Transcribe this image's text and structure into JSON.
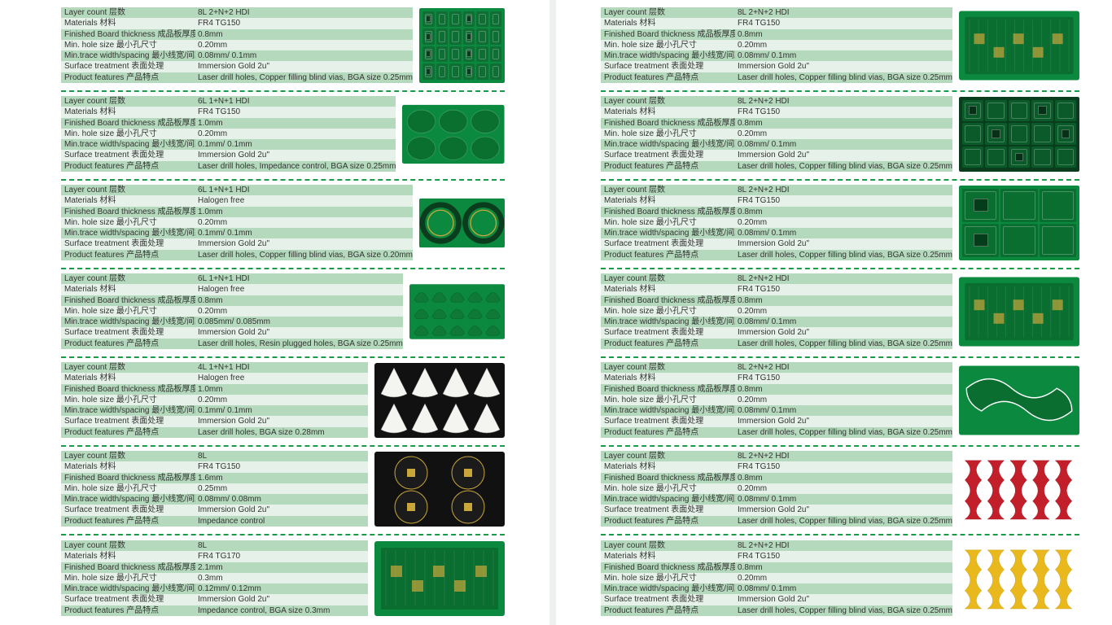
{
  "labels": [
    "Layer count 层数",
    "Materials 材料",
    "Finished Board thickness 成品板厚度",
    "Min. hole size 最小孔尺寸",
    "Min.trace width/spacing 最小线宽/间距",
    "Surface treatment 表面处理",
    "Product features 产品特点"
  ],
  "colors": {
    "row_odd": "#b4d9bc",
    "row_even": "#e6f2e9",
    "divider": "#1a9b4a",
    "pcb_green": "#0b8a3f",
    "pcb_dark": "#0a3d1e",
    "pcb_black": "#111111",
    "pcb_red": "#c21f2b",
    "pcb_yellow": "#e8b81c",
    "pcb_white": "#f4f4f0",
    "gold": "#c9a63a"
  },
  "left": [
    {
      "values": [
        "8L 2+N+2 HDI",
        "FR4 TG150",
        "0.8mm",
        "0.20mm",
        "0.08mm/ 0.1mm",
        "Immersion Gold 2u\"",
        "Laser drill holes, Copper filling blind vias, BGA size 0.25mm"
      ],
      "thumb": {
        "bg": "#0b8a3f",
        "grid": [
          4,
          6
        ],
        "cell": "#0f6e34",
        "shape": "grid"
      }
    },
    {
      "values": [
        "6L 1+N+1 HDI",
        "FR4 TG150",
        "1.0mm",
        "0.20mm",
        "0.1mm/ 0.1mm",
        "Immersion Gold 2u\"",
        "Laser drill holes,   Impedance control, BGA size 0.25mm"
      ],
      "thumb": {
        "bg": "#0b8a3f",
        "grid": [
          2,
          3
        ],
        "cell": "#0a7030",
        "shape": "blob"
      }
    },
    {
      "values": [
        "6L 1+N+1 HDI",
        "Halogen free",
        "1.0mm",
        "0.20mm",
        "0.1mm/ 0.1mm",
        "Immersion Gold 2u\"",
        "Laser drill holes, Copper filling blind vias, BGA size 0.20mm"
      ],
      "thumb": {
        "bg": "#0b8a3f",
        "grid": [
          1,
          2
        ],
        "cell": "#0a6e2f",
        "shape": "ring"
      }
    },
    {
      "values": [
        "6L 1+N+1 HDI",
        "Halogen free",
        "0.8mm",
        "0.20mm",
        "0.085mm/ 0.085mm",
        "Immersion Gold 2u\"",
        "Laser drill holes,   Resin plugged holes,   BGA size 0.25mm"
      ],
      "thumb": {
        "bg": "#0b8a3f",
        "grid": [
          3,
          5
        ],
        "cell": "#0f7a38",
        "shape": "fan"
      }
    },
    {
      "values": [
        "4L 1+N+1 HDI",
        " Halogen free",
        "1.0mm",
        "0.20mm",
        "0.1mm/ 0.1mm",
        "Immersion Gold 2u\"",
        "Laser drill holes,   BGA size 0.28mm"
      ],
      "thumb": {
        "bg": "#111111",
        "grid": [
          2,
          4
        ],
        "cell": "#f4f4f0",
        "shape": "tri"
      }
    },
    {
      "values": [
        "8L",
        "FR4 TG150",
        "1.6mm",
        "0.25mm",
        "0.08mm/ 0.08mm",
        "Immersion Gold 2u\"",
        "Impedance control"
      ],
      "thumb": {
        "bg": "#111111",
        "grid": [
          2,
          2
        ],
        "cell": "#1b1b1b",
        "shape": "round"
      }
    },
    {
      "values": [
        "8L",
        "FR4 TG170",
        "2.1mm",
        "0.3mm",
        "0.12mm/ 0.12mm",
        "Immersion Gold 2u\"",
        "Impedance control, BGA size 0.3mm"
      ],
      "thumb": {
        "bg": "#0b8a3f",
        "grid": [
          1,
          1
        ],
        "cell": "#0b6e31",
        "shape": "board"
      }
    }
  ],
  "right": [
    {
      "values": [
        "8L 2+N+2 HDI",
        "FR4 TG150",
        "0.8mm",
        "0.20mm",
        "0.08mm/ 0.1mm",
        "Immersion Gold 2u\"",
        "Laser drill holes, Copper filling blind vias, BGA size 0.25mm"
      ],
      "thumb": {
        "bg": "#0b8a3f",
        "grid": [
          1,
          1
        ],
        "cell": "#0a6e31",
        "shape": "board"
      }
    },
    {
      "values": [
        "8L 2+N+2 HDI",
        "FR4 TG150",
        "0.8mm",
        "0.20mm",
        "0.08mm/ 0.1mm",
        "Immersion Gold 2u\"",
        "Laser drill holes, Copper filling blind vias, BGA size 0.25mm"
      ],
      "thumb": {
        "bg": "#0a3d1e",
        "grid": [
          3,
          5
        ],
        "cell": "#0b5a2a",
        "shape": "grid"
      }
    },
    {
      "values": [
        "8L 2+N+2 HDI",
        "FR4 TG150",
        "0.8mm",
        "0.20mm",
        "0.08mm/ 0.1mm",
        "Immersion Gold 2u\"",
        "Laser drill holes, Copper filling blind vias, BGA size 0.25mm"
      ],
      "thumb": {
        "bg": "#0b8a3f",
        "grid": [
          2,
          3
        ],
        "cell": "#0a6e31",
        "shape": "grid"
      }
    },
    {
      "values": [
        "8L 2+N+2 HDI",
        "FR4 TG150",
        "0.8mm",
        "0.20mm",
        "0.08mm/ 0.1mm",
        "Immersion Gold 2u\"",
        "Laser drill holes, Copper filling blind vias, BGA size 0.25mm"
      ],
      "thumb": {
        "bg": "#0b8a3f",
        "grid": [
          1,
          1
        ],
        "cell": "#0a6e31",
        "shape": "board"
      }
    },
    {
      "values": [
        "8L 2+N+2 HDI",
        "FR4 TG150",
        "0.8mm",
        "0.20mm",
        "0.08mm/ 0.1mm",
        "Immersion Gold 2u\"",
        "Laser drill holes, Copper filling blind vias, BGA size 0.25mm"
      ],
      "thumb": {
        "bg": "#0b8a3f",
        "grid": [
          1,
          1
        ],
        "cell": "#0a6e31",
        "shape": "wave"
      }
    },
    {
      "values": [
        "8L 2+N+2 HDI",
        "FR4 TG150",
        "0.8mm",
        "0.20mm",
        "0.08mm/ 0.1mm",
        "Immersion Gold 2u\"",
        "Laser drill holes, Copper filling blind vias, BGA size 0.25mm"
      ],
      "thumb": {
        "bg": "#c21f2b",
        "grid": [
          1,
          5
        ],
        "cell": "#a3141f",
        "shape": "wavecol"
      }
    },
    {
      "values": [
        "8L 2+N+2 HDI",
        "FR4 TG150",
        "0.8mm",
        "0.20mm",
        "0.08mm/ 0.1mm",
        "Immersion Gold 2u\"",
        "Laser drill holes, Copper filling blind vias, BGA size 0.25mm"
      ],
      "thumb": {
        "bg": "#e8b81c",
        "grid": [
          1,
          4
        ],
        "cell": "#caa018",
        "shape": "wavecol"
      }
    }
  ]
}
